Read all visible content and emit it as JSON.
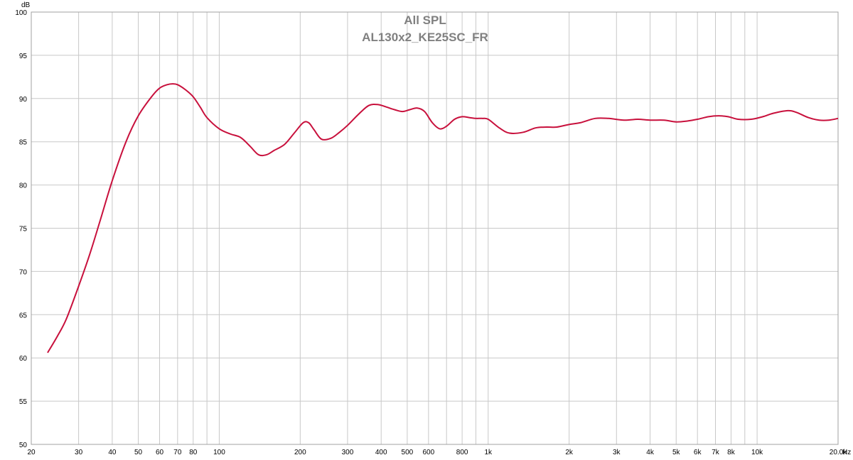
{
  "chart_data": {
    "type": "line",
    "title": "All SPL",
    "subtitle": "AL130x2_KE25SC_FR",
    "xlabel": "Hz",
    "ylabel": "dB",
    "x_scale": "log",
    "xlim": [
      20,
      20000
    ],
    "ylim": [
      50,
      100
    ],
    "grid": true,
    "y_ticks": [
      50,
      55,
      60,
      65,
      70,
      75,
      80,
      85,
      90,
      95,
      100
    ],
    "y_tick_labels": [
      "50",
      "55",
      "60",
      "65",
      "70",
      "75",
      "80",
      "85",
      "90",
      "95",
      "100"
    ],
    "x_grid": [
      20,
      30,
      40,
      50,
      60,
      70,
      80,
      90,
      100,
      200,
      300,
      400,
      500,
      600,
      700,
      800,
      900,
      1000,
      2000,
      3000,
      4000,
      5000,
      6000,
      7000,
      8000,
      9000,
      10000,
      20000
    ],
    "x_ticks": [
      20,
      30,
      40,
      50,
      60,
      70,
      80,
      100,
      200,
      300,
      400,
      500,
      600,
      800,
      1000,
      2000,
      3000,
      4000,
      5000,
      6000,
      7000,
      8000,
      10000,
      20000
    ],
    "x_tick_labels": [
      "20",
      "30",
      "40",
      "50",
      "60",
      "70",
      "80",
      "100",
      "200",
      "300",
      "400",
      "500",
      "600",
      "800",
      "1k",
      "2k",
      "3k",
      "4k",
      "5k",
      "6k",
      "7k",
      "8k",
      "10k",
      "20.0k"
    ],
    "series": [
      {
        "color": "#c8103c",
        "x": [
          23,
          25,
          27,
          30,
          33,
          36,
          40,
          45,
          50,
          56,
          60,
          64,
          67,
          70,
          75,
          80,
          85,
          90,
          100,
          110,
          120,
          130,
          140,
          150,
          160,
          175,
          190,
          205,
          215,
          225,
          240,
          260,
          280,
          300,
          330,
          360,
          390,
          420,
          450,
          480,
          510,
          545,
          580,
          620,
          660,
          700,
          750,
          800,
          850,
          900,
          950,
          1000,
          1100,
          1200,
          1350,
          1500,
          1650,
          1800,
          2000,
          2200,
          2500,
          2800,
          3200,
          3600,
          4000,
          4500,
          5000,
          5500,
          6000,
          6600,
          7200,
          7800,
          8500,
          9500,
          10500,
          11500,
          13000,
          14000,
          15500,
          17000,
          18500,
          20000
        ],
        "y": [
          60.6,
          62.5,
          64.5,
          68.3,
          72.0,
          75.8,
          80.5,
          85.0,
          88.0,
          90.2,
          91.2,
          91.6,
          91.7,
          91.6,
          91.0,
          90.2,
          89.0,
          87.8,
          86.5,
          85.9,
          85.5,
          84.5,
          83.5,
          83.5,
          84.0,
          84.7,
          86.0,
          87.2,
          87.2,
          86.4,
          85.3,
          85.4,
          86.1,
          86.9,
          88.2,
          89.2,
          89.3,
          89.0,
          88.7,
          88.5,
          88.7,
          88.9,
          88.5,
          87.2,
          86.5,
          86.8,
          87.6,
          87.9,
          87.8,
          87.7,
          87.7,
          87.6,
          86.6,
          86.0,
          86.1,
          86.6,
          86.7,
          86.7,
          87.0,
          87.2,
          87.7,
          87.7,
          87.5,
          87.6,
          87.5,
          87.5,
          87.3,
          87.4,
          87.6,
          87.9,
          88.0,
          87.9,
          87.6,
          87.6,
          87.9,
          88.3,
          88.6,
          88.4,
          87.8,
          87.5,
          87.5,
          87.7
        ]
      }
    ]
  }
}
